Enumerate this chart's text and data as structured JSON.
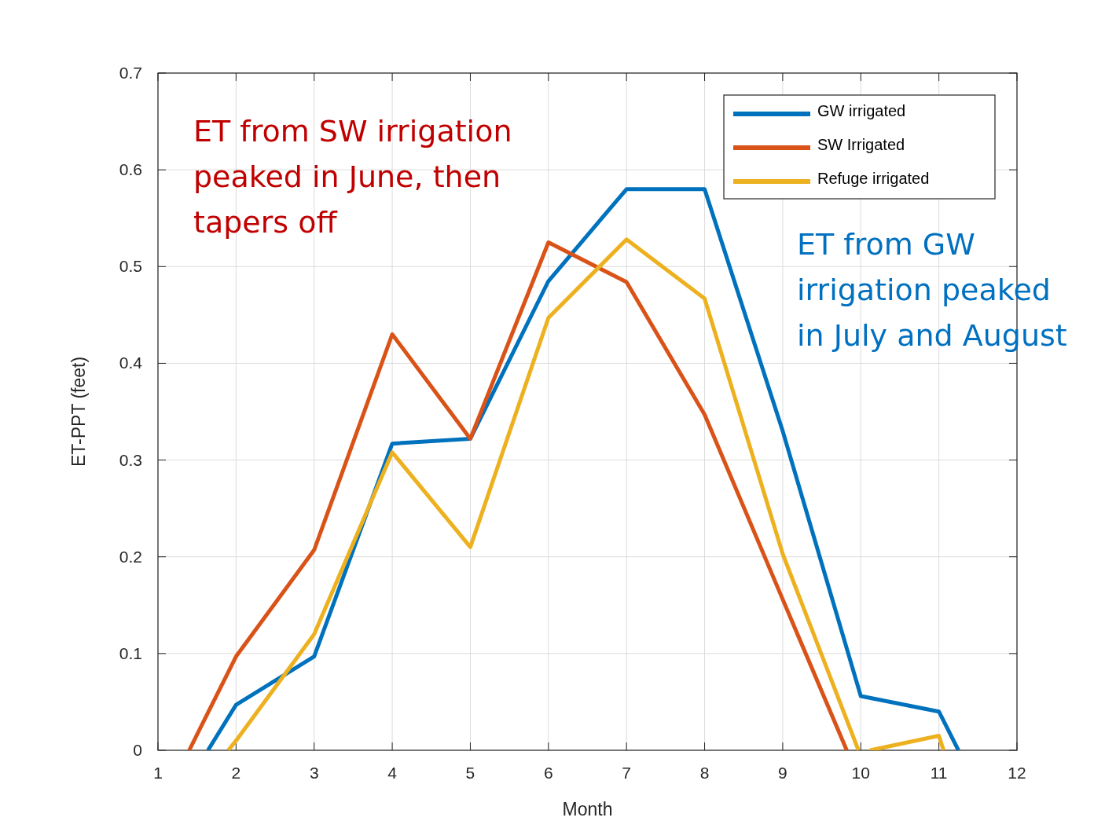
{
  "chart_data": {
    "type": "line",
    "xlabel": "Month",
    "ylabel": "ET-PPT (feet)",
    "xlim": [
      1,
      12
    ],
    "ylim": [
      0,
      0.7
    ],
    "xticks": [
      1,
      2,
      3,
      4,
      5,
      6,
      7,
      8,
      9,
      10,
      11,
      12
    ],
    "yticks": [
      0,
      0.1,
      0.2,
      0.3,
      0.4,
      0.5,
      0.6,
      0.7
    ],
    "grid": true,
    "legend": "top right",
    "marker": "none",
    "line_style": "solid",
    "series": [
      {
        "name": "GW irrigated",
        "color": "#0072bd",
        "x": [
          1.64,
          2,
          3,
          4,
          5,
          6,
          7,
          8,
          9,
          10,
          11,
          11.25
        ],
        "values": [
          0,
          0.047,
          0.097,
          0.317,
          0.322,
          0.485,
          0.58,
          0.58,
          0.33,
          0.056,
          0.04,
          0
        ]
      },
      {
        "name": "SW Irrigated",
        "color": "#d95319",
        "x": [
          1.4,
          2,
          3,
          4,
          5,
          6,
          7,
          8,
          9,
          9.82
        ],
        "values": [
          0,
          0.097,
          0.207,
          0.43,
          0.322,
          0.525,
          0.484,
          0.347,
          0.156,
          0
        ]
      },
      {
        "name": "Refuge irrigated",
        "color": "#edb120",
        "x": [
          1.9,
          2,
          3,
          4,
          5,
          6,
          7,
          8,
          9,
          9.97,
          10.05,
          10.12,
          11,
          11.06
        ],
        "values": [
          0,
          0.01,
          0.12,
          0.308,
          0.21,
          0.447,
          0.528,
          0.467,
          0.203,
          0,
          null,
          0,
          0.015,
          0
        ]
      }
    ],
    "annotations": [
      "ET from SW irrigation peaked in June, then tapers off",
      "ET from GW irrigation peaked in July and August"
    ]
  }
}
